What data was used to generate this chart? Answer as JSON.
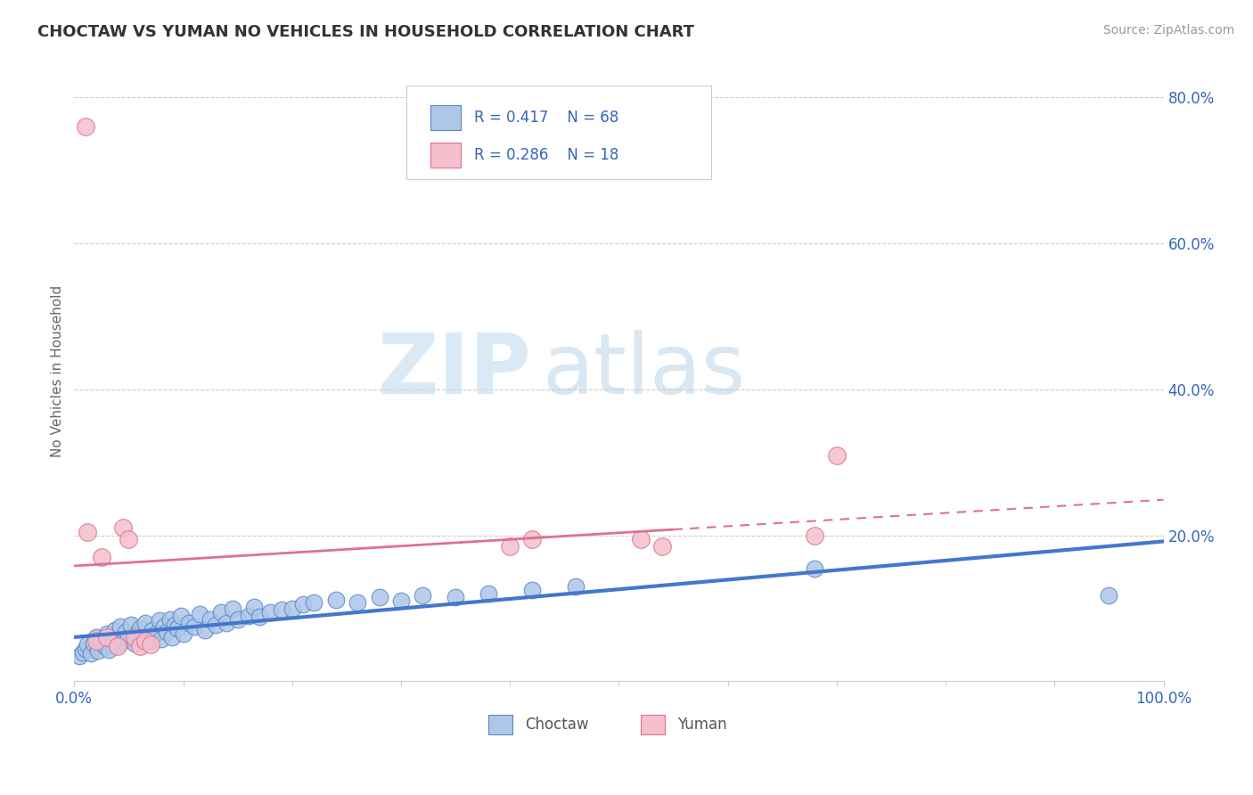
{
  "title": "CHOCTAW VS YUMAN NO VEHICLES IN HOUSEHOLD CORRELATION CHART",
  "source": "Source: ZipAtlas.com",
  "ylabel": "No Vehicles in Household",
  "xlim": [
    0.0,
    1.0
  ],
  "ylim": [
    0.0,
    0.85
  ],
  "xticks": [
    0.0,
    0.1,
    0.2,
    0.3,
    0.4,
    0.5,
    0.6,
    0.7,
    0.8,
    0.9,
    1.0
  ],
  "xtick_labels": [
    "0.0%",
    "",
    "",
    "",
    "",
    "",
    "",
    "",
    "",
    "",
    "100.0%"
  ],
  "yticks": [
    0.0,
    0.2,
    0.4,
    0.6,
    0.8
  ],
  "ytick_labels": [
    "",
    "20.0%",
    "40.0%",
    "60.0%",
    "80.0%"
  ],
  "choctaw_color": "#aec6e8",
  "choctaw_edge_color": "#5588cc",
  "yuman_color": "#f5bfcd",
  "yuman_edge_color": "#e0708a",
  "trendline_choctaw_color": "#4477cc",
  "trendline_yuman_color": "#e07090",
  "legend_R_choctaw": "R = 0.417",
  "legend_N_choctaw": "N = 68",
  "legend_R_yuman": "R = 0.286",
  "legend_N_yuman": "N = 18",
  "watermark_zip": "ZIP",
  "watermark_atlas": "atlas",
  "choctaw_x": [
    0.005,
    0.008,
    0.01,
    0.012,
    0.015,
    0.018,
    0.02,
    0.022,
    0.025,
    0.028,
    0.03,
    0.032,
    0.035,
    0.037,
    0.04,
    0.042,
    0.045,
    0.047,
    0.05,
    0.052,
    0.055,
    0.058,
    0.06,
    0.062,
    0.065,
    0.068,
    0.07,
    0.072,
    0.075,
    0.078,
    0.08,
    0.082,
    0.085,
    0.088,
    0.09,
    0.092,
    0.095,
    0.098,
    0.1,
    0.105,
    0.11,
    0.115,
    0.12,
    0.125,
    0.13,
    0.135,
    0.14,
    0.145,
    0.15,
    0.16,
    0.165,
    0.17,
    0.18,
    0.19,
    0.2,
    0.21,
    0.22,
    0.24,
    0.26,
    0.28,
    0.3,
    0.32,
    0.35,
    0.38,
    0.42,
    0.46,
    0.68,
    0.95
  ],
  "choctaw_y": [
    0.035,
    0.04,
    0.045,
    0.05,
    0.038,
    0.052,
    0.06,
    0.042,
    0.055,
    0.048,
    0.065,
    0.043,
    0.058,
    0.07,
    0.05,
    0.075,
    0.055,
    0.068,
    0.06,
    0.078,
    0.052,
    0.065,
    0.072,
    0.058,
    0.08,
    0.062,
    0.055,
    0.07,
    0.065,
    0.083,
    0.058,
    0.075,
    0.068,
    0.085,
    0.06,
    0.078,
    0.072,
    0.09,
    0.065,
    0.08,
    0.075,
    0.092,
    0.07,
    0.085,
    0.078,
    0.095,
    0.08,
    0.1,
    0.085,
    0.09,
    0.102,
    0.088,
    0.095,
    0.098,
    0.1,
    0.105,
    0.108,
    0.112,
    0.108,
    0.115,
    0.11,
    0.118,
    0.115,
    0.12,
    0.125,
    0.13,
    0.155,
    0.118
  ],
  "yuman_x": [
    0.01,
    0.012,
    0.02,
    0.025,
    0.03,
    0.04,
    0.045,
    0.05,
    0.055,
    0.06,
    0.065,
    0.07,
    0.4,
    0.42,
    0.52,
    0.54,
    0.68,
    0.7
  ],
  "yuman_y": [
    0.76,
    0.205,
    0.055,
    0.17,
    0.06,
    0.048,
    0.21,
    0.195,
    0.06,
    0.048,
    0.055,
    0.05,
    0.185,
    0.195,
    0.195,
    0.185,
    0.2,
    0.31
  ]
}
